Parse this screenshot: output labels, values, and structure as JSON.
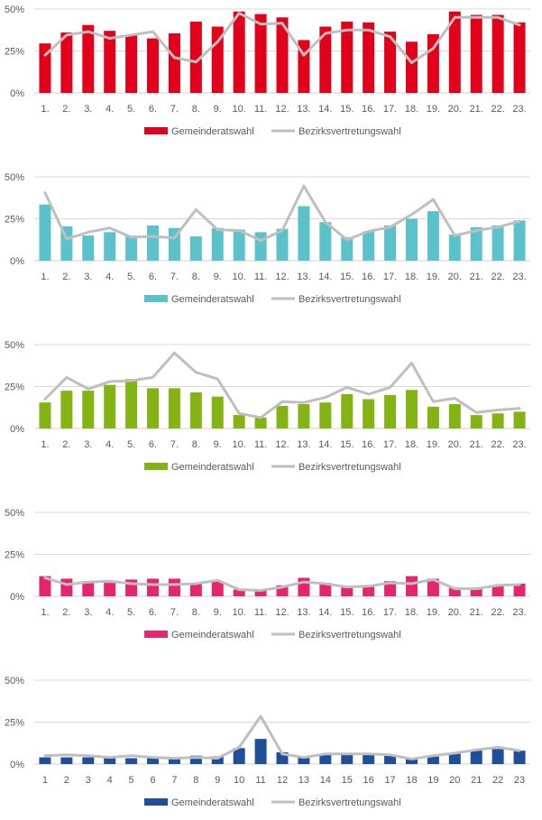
{
  "chart_data": [
    {
      "type": "bar",
      "categories": [
        "1.",
        "2.",
        "3.",
        "4.",
        "5.",
        "6.",
        "7.",
        "8.",
        "9.",
        "10.",
        "11.",
        "12.",
        "13.",
        "14.",
        "15.",
        "16.",
        "17.",
        "18.",
        "19.",
        "20.",
        "21.",
        "22.",
        "23."
      ],
      "y_ticks": [
        "0%",
        "25%",
        "50%"
      ],
      "ylim": [
        0,
        50
      ],
      "grid": true,
      "legend": "bottom",
      "colors": {
        "bar": "#e2001a",
        "line": "#bfbfbf"
      },
      "series": [
        {
          "name": "Gemeinderatswahl",
          "kind": "bar",
          "values": [
            29.5,
            36,
            40.5,
            37,
            34.5,
            32.5,
            35.5,
            42.5,
            39.5,
            48.5,
            47,
            45,
            31.5,
            39.5,
            42.5,
            42,
            36.5,
            30.5,
            35,
            48.5,
            46.5,
            46.5,
            42
          ]
        },
        {
          "name": "Bezirksvertretungswahl",
          "kind": "line",
          "values": [
            22.5,
            34.5,
            36.5,
            32.5,
            34.5,
            36.5,
            21,
            18.5,
            30.5,
            47.5,
            41,
            41.5,
            22.5,
            35.5,
            37.5,
            37.5,
            33.5,
            18,
            26.5,
            45,
            45,
            45,
            40.5
          ]
        }
      ]
    },
    {
      "type": "bar",
      "categories": [
        "1.",
        "2.",
        "3.",
        "4.",
        "5.",
        "6.",
        "7.",
        "8.",
        "9.",
        "10.",
        "11.",
        "12.",
        "13.",
        "14.",
        "15.",
        "16.",
        "17.",
        "18.",
        "19.",
        "20.",
        "21.",
        "22.",
        "23."
      ],
      "y_ticks": [
        "0%",
        "25%",
        "50%"
      ],
      "ylim": [
        0,
        50
      ],
      "grid": true,
      "legend": "bottom",
      "colors": {
        "bar": "#5bc2cc",
        "line": "#bfbfbf"
      },
      "series": [
        {
          "name": "Gemeinderatswahl",
          "kind": "bar",
          "values": [
            33.5,
            20.5,
            15,
            17,
            15,
            21,
            19.5,
            14.5,
            19.5,
            18.5,
            17,
            19,
            32.5,
            23,
            14,
            17.5,
            21,
            25,
            29.5,
            15.5,
            20,
            21,
            24
          ]
        },
        {
          "name": "Bezirksvertretungswahl",
          "kind": "line",
          "values": [
            40.5,
            13,
            17,
            19.5,
            14,
            14.5,
            13.5,
            30.5,
            18.5,
            18,
            12,
            18,
            44.5,
            23,
            12.5,
            17.5,
            20,
            27.5,
            36.5,
            15,
            18,
            20,
            23.5
          ]
        }
      ]
    },
    {
      "type": "bar",
      "categories": [
        "1.",
        "2.",
        "3.",
        "4.",
        "5.",
        "6.",
        "7.",
        "8.",
        "9.",
        "10.",
        "11.",
        "12.",
        "13.",
        "14.",
        "15.",
        "16.",
        "17.",
        "18.",
        "19.",
        "20.",
        "21.",
        "22.",
        "23."
      ],
      "y_ticks": [
        "0%",
        "25%",
        "50%"
      ],
      "ylim": [
        0,
        50
      ],
      "grid": true,
      "legend": "bottom",
      "colors": {
        "bar": "#84b414",
        "line": "#bfbfbf"
      },
      "series": [
        {
          "name": "Gemeinderatswahl",
          "kind": "bar",
          "values": [
            15.5,
            22.5,
            22.5,
            26,
            29.5,
            24,
            24,
            21.5,
            19,
            8,
            6.5,
            13.5,
            14.5,
            15.5,
            20.5,
            17.5,
            20,
            23,
            13,
            14.5,
            8,
            9,
            10
          ]
        },
        {
          "name": "Bezirksvertretungswahl",
          "kind": "line",
          "values": [
            17.5,
            30.5,
            23.5,
            28,
            28.5,
            30.5,
            45,
            33.5,
            29.5,
            9,
            6.5,
            16,
            15.5,
            18.5,
            24.5,
            20.5,
            24.5,
            39,
            16,
            18,
            9.5,
            11,
            12
          ]
        }
      ]
    },
    {
      "type": "bar",
      "categories": [
        "1.",
        "2.",
        "3.",
        "4.",
        "5.",
        "6.",
        "7.",
        "8.",
        "9.",
        "10.",
        "11.",
        "12.",
        "13.",
        "14.",
        "15.",
        "16.",
        "17.",
        "18.",
        "19.",
        "20.",
        "21.",
        "22.",
        "23."
      ],
      "y_ticks": [
        "0%",
        "25%",
        "50%"
      ],
      "ylim": [
        0,
        50
      ],
      "grid": true,
      "legend": "bottom",
      "colors": {
        "bar": "#e6256e",
        "line": "#bfbfbf"
      },
      "series": [
        {
          "name": "Gemeinderatswahl",
          "kind": "bar",
          "values": [
            12,
            10.5,
            9,
            8,
            10,
            10.5,
            10.5,
            8,
            9,
            4,
            3.5,
            6.5,
            11,
            8,
            6,
            6.5,
            9,
            12,
            10.5,
            5,
            5,
            6,
            7.5
          ]
        },
        {
          "name": "Bezirksvertretungswahl",
          "kind": "line",
          "values": [
            11,
            7,
            8.5,
            9,
            7.5,
            7,
            7,
            7.5,
            9.5,
            4,
            3.5,
            5.5,
            8.5,
            7.5,
            5.5,
            6,
            8,
            7.5,
            10,
            4.5,
            4.5,
            6.5,
            7
          ]
        }
      ]
    },
    {
      "type": "bar",
      "categories": [
        "1",
        "2",
        "3",
        "4",
        "5",
        "6",
        "7",
        "8",
        "9",
        "10",
        "11",
        "12",
        "13",
        "14",
        "15",
        "16",
        "17",
        "18",
        "19",
        "20",
        "21",
        "22",
        "23"
      ],
      "y_ticks": [
        "0%",
        "25%",
        "50%"
      ],
      "ylim": [
        0,
        50
      ],
      "grid": true,
      "legend": "bottom",
      "colors": {
        "bar": "#1f4e9a",
        "line": "#bfbfbf"
      },
      "series": [
        {
          "name": "Gemeinderatswahl",
          "kind": "bar",
          "values": [
            4,
            4,
            4,
            3.5,
            3.5,
            3.5,
            3,
            5,
            4.5,
            9.5,
            15,
            7,
            4,
            6,
            6,
            5.5,
            5,
            3,
            4.5,
            6.5,
            8.5,
            9,
            8
          ]
        },
        {
          "name": "Bezirksvertretungswahl",
          "kind": "line",
          "values": [
            5,
            5.5,
            5,
            4,
            5,
            4,
            3.5,
            4,
            3.5,
            10,
            28.5,
            6,
            4,
            6,
            6,
            6,
            5.5,
            3,
            5,
            6.5,
            8.5,
            10,
            8
          ]
        }
      ]
    }
  ]
}
